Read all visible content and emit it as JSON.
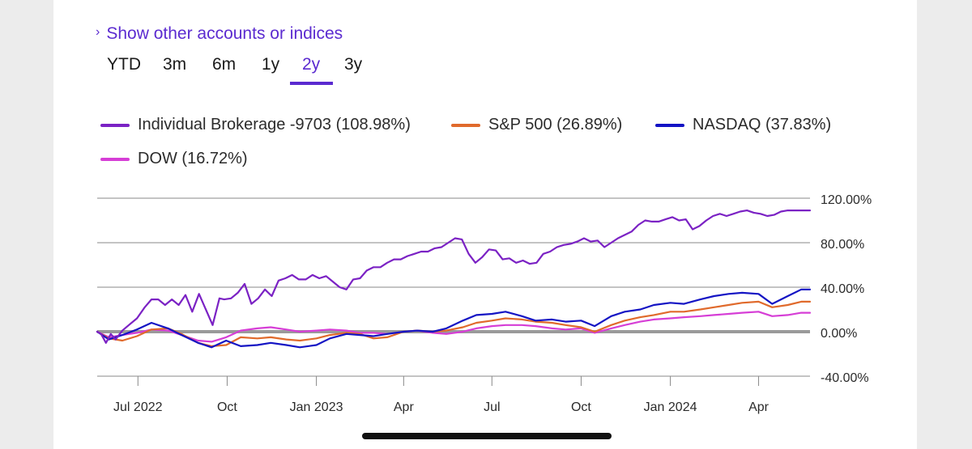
{
  "header": {
    "toggle_label": "Show other accounts or indices",
    "toggle_icon": "chevron-right-icon"
  },
  "tabs": [
    "YTD",
    "3m",
    "6m",
    "1y",
    "2y",
    "3y"
  ],
  "active_tab": "2y",
  "colors": {
    "accent": "#5b2bd0",
    "brokerage": "#7b22c4",
    "sp500": "#e06a2c",
    "nasdaq": "#1414c4",
    "dow": "#d63ed6",
    "zero_line": "#9a9a9a",
    "grid": "#8a8a8a"
  },
  "chart_data": {
    "type": "line",
    "ylim": [
      -40,
      120
    ],
    "y_ticks": [
      120,
      80,
      40,
      0,
      -40
    ],
    "y_tick_labels": [
      "120.00%",
      "80.00%",
      "40.00%",
      "0.00%",
      "-40.00%"
    ],
    "x_tick_labels": [
      "Jul 2022",
      "Oct",
      "Jan 2023",
      "Apr",
      "Jul",
      "Oct",
      "Jan 2024",
      "Apr"
    ],
    "legend": [
      {
        "label": "Individual Brokerage -9703 (108.98%)",
        "color": "#7b22c4"
      },
      {
        "label": "S&P 500 (26.89%)",
        "color": "#e06a2c"
      },
      {
        "label": "NASDAQ (37.83%)",
        "color": "#1414c4"
      },
      {
        "label": "DOW (16.72%)",
        "color": "#d63ed6"
      }
    ],
    "x_range": [
      "2022-05-20",
      "2024-05-24"
    ],
    "series": [
      {
        "name": "Individual Brokerage -9703 (108.98%)",
        "color": "#7b22c4",
        "x": [
          "2022-05-20",
          "2022-05-24",
          "2022-05-29",
          "2022-06-03",
          "2022-06-08",
          "2022-06-15",
          "2022-06-23",
          "2022-06-30",
          "2022-07-08",
          "2022-07-15",
          "2022-07-22",
          "2022-07-29",
          "2022-08-05",
          "2022-08-12",
          "2022-08-19",
          "2022-08-26",
          "2022-09-02",
          "2022-09-09",
          "2022-09-16",
          "2022-09-23",
          "2022-09-28",
          "2022-10-05",
          "2022-10-12",
          "2022-10-19",
          "2022-10-26",
          "2022-11-02",
          "2022-11-09",
          "2022-11-16",
          "2022-11-23",
          "2022-11-30",
          "2022-12-07",
          "2022-12-14",
          "2022-12-21",
          "2022-12-28",
          "2023-01-04",
          "2023-01-11",
          "2023-01-18",
          "2023-01-25",
          "2023-02-01",
          "2023-02-08",
          "2023-02-15",
          "2023-02-22",
          "2023-03-01",
          "2023-03-08",
          "2023-03-15",
          "2023-03-22",
          "2023-03-29",
          "2023-04-05",
          "2023-04-12",
          "2023-04-19",
          "2023-04-26",
          "2023-05-03",
          "2023-05-10",
          "2023-05-17",
          "2023-05-24",
          "2023-05-31",
          "2023-06-07",
          "2023-06-14",
          "2023-06-21",
          "2023-06-28",
          "2023-07-05",
          "2023-07-12",
          "2023-07-19",
          "2023-07-26",
          "2023-08-02",
          "2023-08-09",
          "2023-08-16",
          "2023-08-23",
          "2023-08-30",
          "2023-09-06",
          "2023-09-13",
          "2023-09-20",
          "2023-09-27",
          "2023-10-04",
          "2023-10-11",
          "2023-10-18",
          "2023-10-25",
          "2023-11-01",
          "2023-11-08",
          "2023-11-15",
          "2023-11-22",
          "2023-11-29",
          "2023-12-06",
          "2023-12-13",
          "2023-12-20",
          "2023-12-27",
          "2024-01-03",
          "2024-01-10",
          "2024-01-17",
          "2024-01-24",
          "2024-01-31",
          "2024-02-07",
          "2024-02-14",
          "2024-02-21",
          "2024-02-28",
          "2024-03-06",
          "2024-03-13",
          "2024-03-20",
          "2024-03-27",
          "2024-04-03",
          "2024-04-10",
          "2024-04-17",
          "2024-04-24",
          "2024-05-01",
          "2024-05-08",
          "2024-05-15",
          "2024-05-22",
          "2024-05-24"
        ],
        "values": [
          0,
          -2,
          -10,
          -2,
          -7,
          1,
          7,
          12,
          22,
          29,
          29,
          24,
          29,
          24,
          33,
          18,
          34,
          20,
          6,
          30,
          29,
          30,
          35,
          43,
          25,
          30,
          38,
          32,
          46,
          48,
          51,
          47,
          47,
          51,
          48,
          50,
          45,
          40,
          38,
          47,
          48,
          55,
          58,
          58,
          62,
          65,
          65,
          68,
          70,
          72,
          72,
          75,
          76,
          80,
          84,
          83,
          70,
          62,
          67,
          74,
          73,
          65,
          66,
          62,
          64,
          61,
          62,
          70,
          72,
          76,
          78,
          79,
          81,
          84,
          81,
          82,
          76,
          80,
          84,
          87,
          90,
          96,
          100,
          99,
          99,
          101,
          103,
          100,
          101,
          92,
          95,
          100,
          104,
          106,
          104,
          106,
          108,
          109,
          107,
          106,
          104,
          105,
          108,
          109,
          109,
          109,
          109,
          109
        ]
      },
      {
        "name": "S&P 500 (26.89%)",
        "color": "#e06a2c",
        "x": [
          "2022-05-20",
          "2022-06-01",
          "2022-06-15",
          "2022-06-30",
          "2022-07-15",
          "2022-08-01",
          "2022-08-15",
          "2022-09-01",
          "2022-09-15",
          "2022-09-30",
          "2022-10-15",
          "2022-11-01",
          "2022-11-15",
          "2022-12-01",
          "2022-12-15",
          "2023-01-01",
          "2023-01-15",
          "2023-02-01",
          "2023-02-15",
          "2023-03-01",
          "2023-03-15",
          "2023-04-01",
          "2023-04-15",
          "2023-05-01",
          "2023-05-15",
          "2023-06-01",
          "2023-06-15",
          "2023-07-01",
          "2023-07-15",
          "2023-08-01",
          "2023-08-15",
          "2023-09-01",
          "2023-09-15",
          "2023-10-01",
          "2023-10-15",
          "2023-11-01",
          "2023-11-15",
          "2023-12-01",
          "2023-12-15",
          "2024-01-01",
          "2024-01-15",
          "2024-02-01",
          "2024-02-15",
          "2024-03-01",
          "2024-03-15",
          "2024-04-01",
          "2024-04-15",
          "2024-05-01",
          "2024-05-15",
          "2024-05-24"
        ],
        "values": [
          0,
          -6,
          -8,
          -4,
          2,
          3,
          -2,
          -10,
          -13,
          -12,
          -5,
          -6,
          -5,
          -7,
          -8,
          -6,
          -3,
          -1,
          -2,
          -6,
          -5,
          0,
          1,
          0,
          1,
          4,
          8,
          10,
          12,
          11,
          9,
          8,
          6,
          4,
          0,
          6,
          10,
          13,
          15,
          18,
          18,
          20,
          22,
          24,
          26,
          27,
          22,
          24,
          27,
          27
        ]
      },
      {
        "name": "NASDAQ (37.83%)",
        "color": "#1414c4",
        "x": [
          "2022-05-20",
          "2022-06-01",
          "2022-06-15",
          "2022-06-30",
          "2022-07-15",
          "2022-08-01",
          "2022-08-15",
          "2022-09-01",
          "2022-09-15",
          "2022-09-30",
          "2022-10-15",
          "2022-11-01",
          "2022-11-15",
          "2022-12-01",
          "2022-12-15",
          "2023-01-01",
          "2023-01-15",
          "2023-02-01",
          "2023-02-15",
          "2023-03-01",
          "2023-03-15",
          "2023-04-01",
          "2023-04-15",
          "2023-05-01",
          "2023-05-15",
          "2023-06-01",
          "2023-06-15",
          "2023-07-01",
          "2023-07-15",
          "2023-08-01",
          "2023-08-15",
          "2023-09-01",
          "2023-09-15",
          "2023-10-01",
          "2023-10-15",
          "2023-11-01",
          "2023-11-15",
          "2023-12-01",
          "2023-12-15",
          "2024-01-01",
          "2024-01-15",
          "2024-02-01",
          "2024-02-15",
          "2024-03-01",
          "2024-03-15",
          "2024-04-01",
          "2024-04-15",
          "2024-05-01",
          "2024-05-15",
          "2024-05-24"
        ],
        "values": [
          0,
          -7,
          -3,
          2,
          8,
          3,
          -3,
          -10,
          -14,
          -8,
          -13,
          -12,
          -10,
          -12,
          -14,
          -12,
          -6,
          -2,
          -3,
          -4,
          -2,
          0,
          1,
          0,
          3,
          10,
          15,
          16,
          18,
          14,
          10,
          11,
          9,
          10,
          5,
          14,
          18,
          20,
          24,
          26,
          25,
          29,
          32,
          34,
          35,
          34,
          25,
          32,
          38,
          38
        ]
      },
      {
        "name": "DOW (16.72%)",
        "color": "#d63ed6",
        "x": [
          "2022-05-20",
          "2022-06-01",
          "2022-06-15",
          "2022-06-30",
          "2022-07-15",
          "2022-08-01",
          "2022-08-15",
          "2022-09-01",
          "2022-09-15",
          "2022-09-30",
          "2022-10-15",
          "2022-11-01",
          "2022-11-15",
          "2022-12-01",
          "2022-12-15",
          "2023-01-01",
          "2023-01-15",
          "2023-02-01",
          "2023-02-15",
          "2023-03-01",
          "2023-03-15",
          "2023-04-01",
          "2023-04-15",
          "2023-05-01",
          "2023-05-15",
          "2023-06-01",
          "2023-06-15",
          "2023-07-01",
          "2023-07-15",
          "2023-08-01",
          "2023-08-15",
          "2023-09-01",
          "2023-09-15",
          "2023-10-01",
          "2023-10-15",
          "2023-11-01",
          "2023-11-15",
          "2023-12-01",
          "2023-12-15",
          "2024-01-01",
          "2024-01-15",
          "2024-02-01",
          "2024-02-15",
          "2024-03-01",
          "2024-03-15",
          "2024-04-01",
          "2024-04-15",
          "2024-05-01",
          "2024-05-15",
          "2024-05-24"
        ],
        "values": [
          0,
          -5,
          -3,
          -1,
          2,
          1,
          -3,
          -8,
          -9,
          -5,
          1,
          3,
          4,
          2,
          0,
          1,
          2,
          1,
          -1,
          -1,
          -2,
          0,
          1,
          -1,
          -2,
          0,
          3,
          5,
          6,
          6,
          5,
          3,
          2,
          3,
          -1,
          3,
          6,
          9,
          11,
          12,
          13,
          14,
          15,
          16,
          17,
          18,
          14,
          15,
          17,
          17
        ]
      }
    ]
  }
}
